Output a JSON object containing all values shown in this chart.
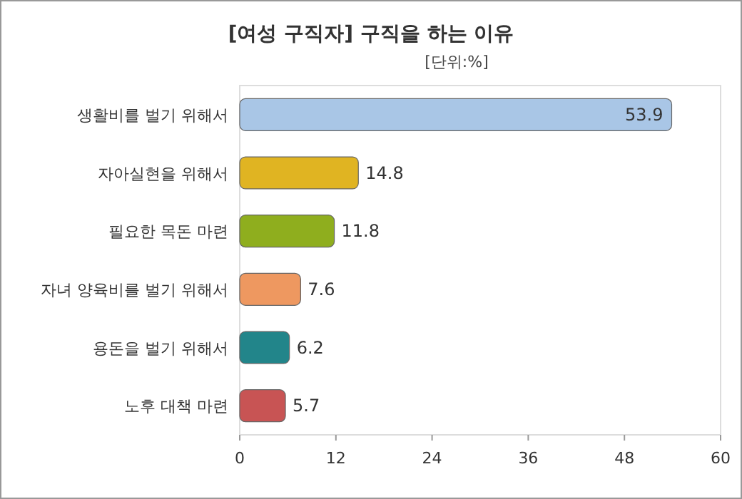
{
  "chart_data": {
    "type": "bar",
    "orientation": "horizontal",
    "title": "[여성 구직자] 구직을 하는 이유",
    "subtitle": "[단위:%]",
    "categories": [
      "생활비를 벌기 위해서",
      "자아실현을 위해서",
      "필요한 목돈 마련",
      "자녀 양육비를 벌기 위해서",
      "용돈을 벌기 위해서",
      "노후 대책 마련"
    ],
    "values": [
      53.9,
      14.8,
      11.8,
      7.6,
      6.2,
      5.7
    ],
    "colors": [
      "#a9c6e6",
      "#e0b422",
      "#8fae1e",
      "#ee9860",
      "#22858a",
      "#c85454"
    ],
    "xlim": [
      0,
      60
    ],
    "xticks": [
      0,
      12,
      24,
      36,
      48,
      60
    ],
    "data_labels": true
  }
}
